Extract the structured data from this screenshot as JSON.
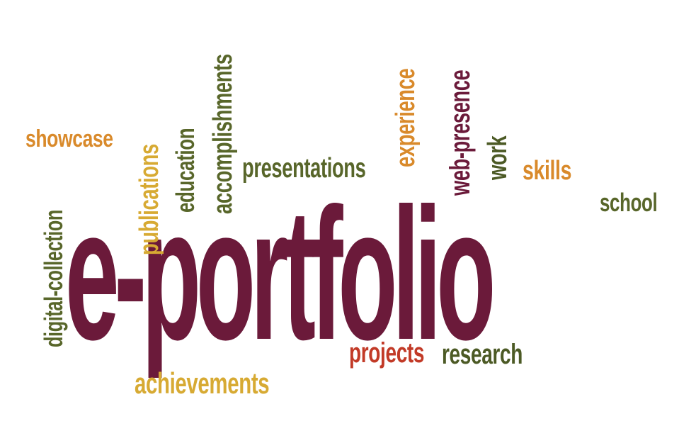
{
  "word_cloud": {
    "main": "e-portfolio",
    "words": {
      "showcase": "showcase",
      "digital_collection": "digital-collection",
      "publications": "publications",
      "education": "education",
      "accomplishments": "accomplishments",
      "presentations": "presentations",
      "experience": "experience",
      "web_presence": "web-presence",
      "work": "work",
      "skills": "skills",
      "school": "school",
      "projects": "projects",
      "research": "research",
      "achievements": "achievements"
    }
  },
  "colors": {
    "maroon": "#6b1a3a",
    "orange": "#d98a2b",
    "olive": "#58662a",
    "gold": "#d7aa33",
    "red": "#c23a27",
    "dark_green": "#4c5a25"
  }
}
